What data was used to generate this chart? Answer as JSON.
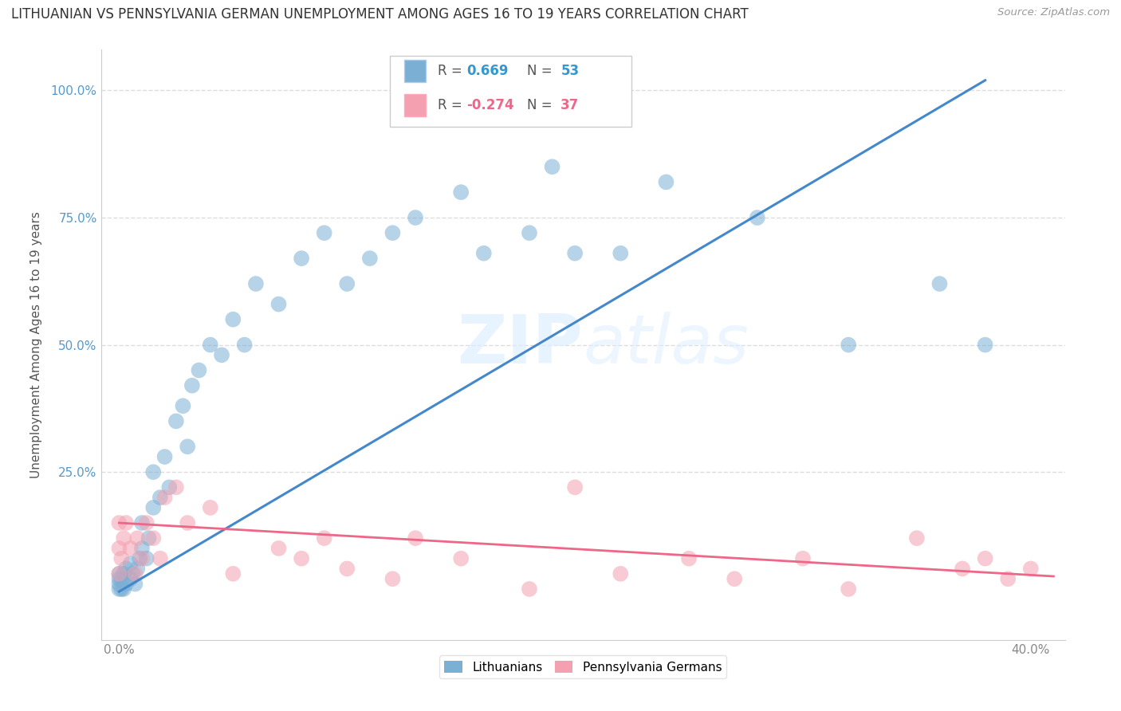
{
  "title": "LITHUANIAN VS PENNSYLVANIA GERMAN UNEMPLOYMENT AMONG AGES 16 TO 19 YEARS CORRELATION CHART",
  "source": "Source: ZipAtlas.com",
  "ylabel": "Unemployment Among Ages 16 to 19 years",
  "xlim": [
    -0.008,
    0.415
  ],
  "ylim": [
    -0.08,
    1.08
  ],
  "blue_R": 0.669,
  "blue_N": 53,
  "pink_R": -0.274,
  "pink_N": 37,
  "blue_color": "#7BAFD4",
  "pink_color": "#F4A0B0",
  "blue_line_color": "#4488CC",
  "pink_line_color": "#EE6688",
  "legend_label_blue": "Lithuanians",
  "legend_label_pink": "Pennsylvania Germans",
  "blue_scatter_x": [
    0.0,
    0.0,
    0.0,
    0.0,
    0.001,
    0.001,
    0.002,
    0.002,
    0.003,
    0.003,
    0.005,
    0.005,
    0.006,
    0.007,
    0.008,
    0.009,
    0.01,
    0.01,
    0.012,
    0.013,
    0.015,
    0.015,
    0.018,
    0.02,
    0.022,
    0.025,
    0.028,
    0.03,
    0.032,
    0.035,
    0.04,
    0.045,
    0.05,
    0.055,
    0.06,
    0.07,
    0.08,
    0.09,
    0.1,
    0.11,
    0.12,
    0.13,
    0.15,
    0.16,
    0.18,
    0.19,
    0.2,
    0.22,
    0.24,
    0.28,
    0.32,
    0.36,
    0.38
  ],
  "blue_scatter_y": [
    0.02,
    0.03,
    0.04,
    0.05,
    0.02,
    0.04,
    0.02,
    0.05,
    0.03,
    0.06,
    0.04,
    0.07,
    0.05,
    0.03,
    0.06,
    0.08,
    0.1,
    0.15,
    0.08,
    0.12,
    0.18,
    0.25,
    0.2,
    0.28,
    0.22,
    0.35,
    0.38,
    0.3,
    0.42,
    0.45,
    0.5,
    0.48,
    0.55,
    0.5,
    0.62,
    0.58,
    0.67,
    0.72,
    0.62,
    0.67,
    0.72,
    0.75,
    0.8,
    0.68,
    0.72,
    0.85,
    0.68,
    0.68,
    0.82,
    0.75,
    0.5,
    0.62,
    0.5
  ],
  "pink_scatter_x": [
    0.0,
    0.0,
    0.0,
    0.001,
    0.002,
    0.003,
    0.005,
    0.007,
    0.008,
    0.01,
    0.012,
    0.015,
    0.018,
    0.02,
    0.025,
    0.03,
    0.04,
    0.05,
    0.07,
    0.08,
    0.09,
    0.1,
    0.12,
    0.13,
    0.15,
    0.18,
    0.2,
    0.22,
    0.25,
    0.27,
    0.3,
    0.32,
    0.35,
    0.37,
    0.38,
    0.39,
    0.4
  ],
  "pink_scatter_y": [
    0.05,
    0.1,
    0.15,
    0.08,
    0.12,
    0.15,
    0.1,
    0.05,
    0.12,
    0.08,
    0.15,
    0.12,
    0.08,
    0.2,
    0.22,
    0.15,
    0.18,
    0.05,
    0.1,
    0.08,
    0.12,
    0.06,
    0.04,
    0.12,
    0.08,
    0.02,
    0.22,
    0.05,
    0.08,
    0.04,
    0.08,
    0.02,
    0.12,
    0.06,
    0.08,
    0.04,
    0.06
  ],
  "blue_line_x": [
    0.0,
    0.38
  ],
  "blue_line_y": [
    0.015,
    1.02
  ],
  "pink_line_x": [
    0.0,
    0.41
  ],
  "pink_line_y": [
    0.15,
    0.045
  ],
  "watermark_zip": "ZIP",
  "watermark_atlas": "atlas",
  "background_color": "#FFFFFF",
  "grid_color": "#DDDDDD",
  "title_fontsize": 12,
  "axis_label_fontsize": 11,
  "tick_fontsize": 11
}
